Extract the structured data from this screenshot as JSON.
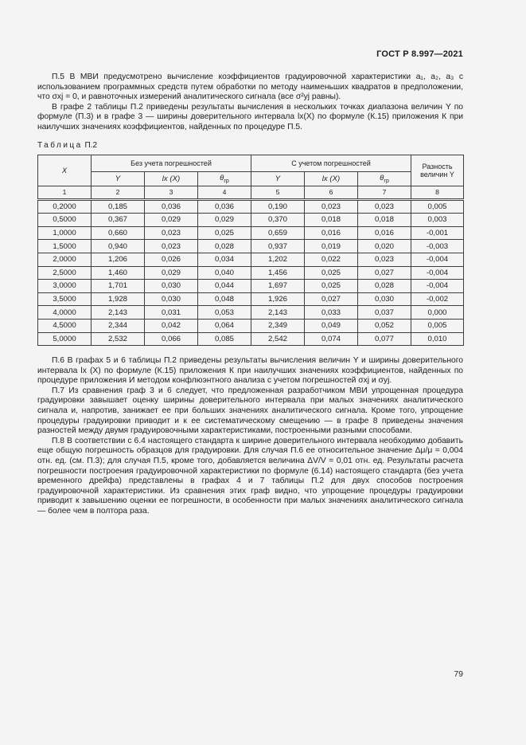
{
  "page": {
    "doc_number": "ГОСТ Р 8.997—2021",
    "page_number": "79",
    "background_color": "#f5f4f5",
    "text_color": "#1c1c1c"
  },
  "paragraphs": {
    "p5": "П.5 В МВИ предусмотрено вычисление коэффициентов градуировочной характеристики a₁, a₂, a₃ с использованием программных средств путем обработки по методу наименьших квадратов в предположении, что σxj = 0, и равноточных измерений аналитического сигнала (все σ²yj равны).",
    "p5b": "В графе 2 таблицы П.2 приведены результаты вычисления в нескольких точках диапазона величин Y по формуле (П.3) и в графе 3 — ширины доверительного интервала lx(X) по формуле (К.15) приложения К при наилучших значениях коэффициентов, найденных по процедуре П.5.",
    "p6": "П.6 В графах 5 и 6 таблицы П.2 приведены результаты вычисления величин Y и ширины доверительного интервала lx (X) по формуле (К.15) приложения К при наилучших значениях коэффициентов, найденных по процедуре приложения И методом конфлюэнтного анализа с учетом погрешностей σxj и σyj.",
    "p7": "П.7 Из сравнения граф 3 и 6 следует, что предложенная разработчиком МВИ упрощенная процедура градуировки завышает оценку ширины доверительного интервала при малых значениях аналитического сигнала и, напротив, занижает ее при больших значениях аналитического сигнала. Кроме того, упрощение процедуры градуировки приводит и к ее систематическому смещению — в графе 8 приведены значения разностей между двумя градуировочными характеристиками, построенными разными способами.",
    "p8": "П.8 В соответствии с 6.4 настоящего стандарта к ширине доверительного интервала необходимо добавить еще общую погрешность образцов для градуировки. Для случая П.6 ее относительное значение Δμ/μ = 0,004 отн. ед. (см. П.3); для случая П.5, кроме того, добавляется величина ΔV/V = 0,01 отн. ед. Результаты расчета погрешности построения градуировочной характеристики по формуле (6.14) настоящего стандарта (без учета временного дрейфа) представлены в графах 4 и 7 таблицы П.2 для двух способов построения градуировочной характеристики. Из сравнения этих граф видно, что упрощение процедуры градуировки приводит к завышению оценки ее погрешности, в особенности при малых значениях аналитического сигнала — более чем в полтора раза."
  },
  "table": {
    "label_word": "Таблица",
    "label_number": "П.2",
    "col_x": "X",
    "group1": "Без учета погрешностей",
    "group2": "С учетом погрешностей",
    "col_last": "Разность величин Y",
    "sub_y": "Y",
    "sub_lx": "lx (X)",
    "sub_theta_base": "θ",
    "sub_theta_sub": "гр",
    "number_row": [
      "1",
      "2",
      "3",
      "4",
      "5",
      "6",
      "7",
      "8"
    ],
    "rows": [
      [
        "0,2000",
        "0,185",
        "0,036",
        "0,036",
        "0,190",
        "0,023",
        "0,023",
        "0,005"
      ],
      [
        "0,5000",
        "0,367",
        "0,029",
        "0,029",
        "0,370",
        "0,018",
        "0,018",
        "0,003"
      ],
      [
        "1,0000",
        "0,660",
        "0,023",
        "0,025",
        "0,659",
        "0,016",
        "0,016",
        "-0,001"
      ],
      [
        "1,5000",
        "0,940",
        "0,023",
        "0,028",
        "0,937",
        "0,019",
        "0,020",
        "-0,003"
      ],
      [
        "2,0000",
        "1,206",
        "0,026",
        "0,034",
        "1,202",
        "0,022",
        "0,023",
        "-0,004"
      ],
      [
        "2,5000",
        "1,460",
        "0,029",
        "0,040",
        "1,456",
        "0,025",
        "0,027",
        "-0,004"
      ],
      [
        "3,0000",
        "1,701",
        "0,030",
        "0,044",
        "1,697",
        "0,025",
        "0,028",
        "-0,004"
      ],
      [
        "3,5000",
        "1,928",
        "0,030",
        "0,048",
        "1,926",
        "0,027",
        "0,030",
        "-0,002"
      ],
      [
        "4,0000",
        "2,143",
        "0,031",
        "0,053",
        "2,143",
        "0,033",
        "0,037",
        "0,000"
      ],
      [
        "4,5000",
        "2,344",
        "0,042",
        "0,064",
        "2,349",
        "0,049",
        "0,052",
        "0,005"
      ],
      [
        "5,0000",
        "2,532",
        "0,066",
        "0,085",
        "2,542",
        "0,074",
        "0,077",
        "0,010"
      ]
    ]
  }
}
